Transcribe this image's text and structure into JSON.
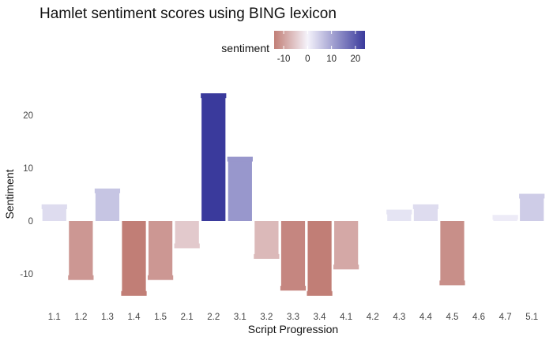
{
  "chart_data": {
    "type": "bar",
    "title": "Hamlet sentiment scores using BING lexicon",
    "xlabel": "Script Progression",
    "ylabel": "Sentiment",
    "categories": [
      "1.1",
      "1.2",
      "1.3",
      "1.4",
      "1.5",
      "2.1",
      "2.2",
      "3.1",
      "3.2",
      "3.3",
      "3.4",
      "4.1",
      "4.2",
      "4.3",
      "4.4",
      "4.5",
      "4.6",
      "4.7",
      "5.1"
    ],
    "values": [
      3,
      -11,
      6,
      -14,
      -11,
      -5,
      24,
      12,
      -7,
      -13,
      -14,
      -9,
      0,
      2,
      3,
      -12,
      0,
      1,
      5
    ],
    "ylim": [
      -16,
      25
    ],
    "yticks": [
      -10,
      0,
      10,
      20
    ],
    "grid": false,
    "legend": {
      "title": "sentiment",
      "placement": "top",
      "ticks": [
        -10,
        0,
        10,
        20
      ],
      "range": [
        -14,
        24
      ],
      "low_color": "#c17e76",
      "mid_color": "#f5f3fb",
      "high_color": "#3a3a9c"
    }
  }
}
